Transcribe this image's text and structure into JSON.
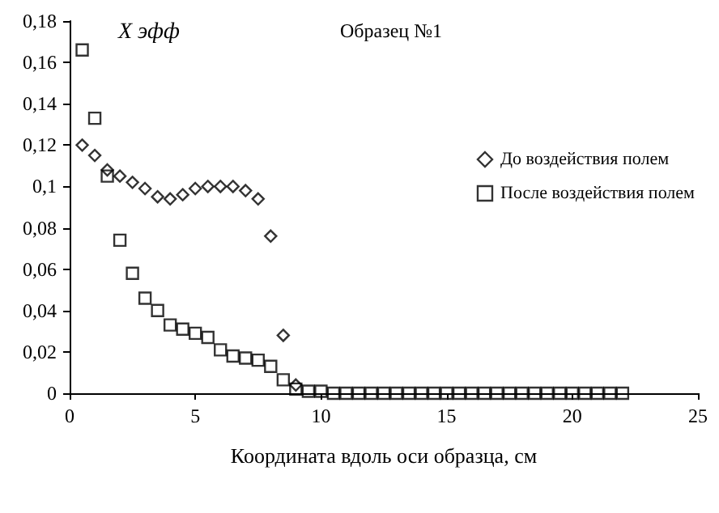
{
  "chart_data": {
    "type": "scatter",
    "title": "Образец №1",
    "xlabel": "Координата вдоль оси образца, см",
    "ylabel": "X эфф",
    "series": [
      {
        "name": "До воздействия полем",
        "color": "#000000",
        "marker": "diamond",
        "x": [
          0.5,
          1,
          1.5,
          2,
          2.5,
          3,
          3.5,
          4,
          4.5,
          5,
          5.5,
          6,
          6.5,
          7,
          7.5,
          8,
          8.5,
          9
        ],
        "values": [
          0.12,
          0.115,
          0.108,
          0.105,
          0.102,
          0.099,
          0.095,
          0.094,
          0.096,
          0.099,
          0.1,
          0.1,
          0.1,
          0.098,
          0.094,
          0.076,
          0.028,
          0.004
        ]
      },
      {
        "name": "После воздействия полем",
        "color": "#000000",
        "marker": "square",
        "x": [
          0.5,
          1,
          1.5,
          2,
          2.5,
          3,
          3.5,
          4,
          4.5,
          5,
          5.5,
          6,
          6.5,
          7,
          7.5,
          8,
          8.5,
          9,
          9.5,
          10,
          10.5,
          11,
          11.5,
          12,
          12.5,
          13,
          13.5,
          14,
          14.5,
          15,
          15.5,
          16,
          16.5,
          17,
          17.5,
          18,
          18.5,
          19,
          19.5,
          20,
          20.5,
          21,
          21.5,
          22
        ],
        "values": [
          0.166,
          0.133,
          0.105,
          0.074,
          0.058,
          0.046,
          0.04,
          0.033,
          0.031,
          0.029,
          0.027,
          0.021,
          0.018,
          0.017,
          0.016,
          0.013,
          0.0065,
          0.002,
          0.001,
          0.001,
          0,
          0,
          0,
          0,
          0,
          0,
          0,
          0,
          0,
          0,
          0,
          0,
          0,
          0,
          0,
          0,
          0,
          0,
          0,
          0,
          0,
          0,
          0,
          0
        ]
      }
    ],
    "xlim": [
      0,
      25
    ],
    "xticks": [
      0,
      5,
      10,
      15,
      20,
      25
    ],
    "ylim": [
      0,
      0.18
    ],
    "yticks": [
      {
        "value": 0,
        "label": "0"
      },
      {
        "value": 0.02,
        "label": "0,02"
      },
      {
        "value": 0.04,
        "label": "0,04"
      },
      {
        "value": 0.06,
        "label": "0,06"
      },
      {
        "value": 0.08,
        "label": "0,08"
      },
      {
        "value": 0.1,
        "label": "0,1"
      },
      {
        "value": 0.12,
        "label": "0,12"
      },
      {
        "value": 0.14,
        "label": "0,14"
      },
      {
        "value": 0.16,
        "label": "0,16"
      },
      {
        "value": 0.18,
        "label": "0,18"
      }
    ],
    "grid": false,
    "legend": "right"
  }
}
